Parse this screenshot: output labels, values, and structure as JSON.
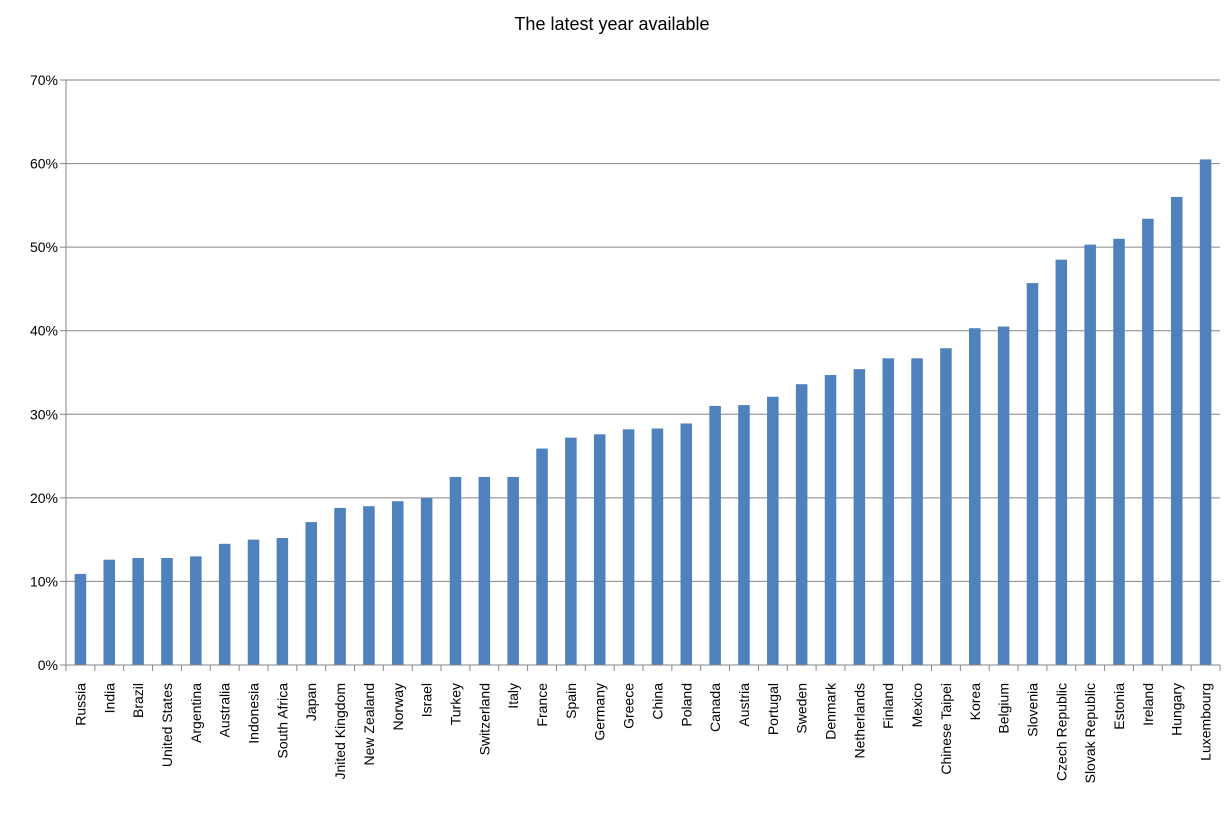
{
  "chart_data": {
    "type": "bar",
    "title": "The latest year available",
    "xlabel": "",
    "ylabel": "",
    "ylim": [
      0,
      0.7
    ],
    "yticks": [
      "0%",
      "10%",
      "20%",
      "30%",
      "40%",
      "50%",
      "60%",
      "70%"
    ],
    "grid": true,
    "legend": "none",
    "bar_color": "#4f81bd",
    "categories": [
      "Russia",
      "India",
      "Brazil",
      "United States",
      "Argentina",
      "Australia",
      "Indonesia",
      "South Africa",
      "Japan",
      "Jnited Kingdom",
      "New Zealand",
      "Norway",
      "Israel",
      "Turkey",
      "Switzerland",
      "Italy",
      "France",
      "Spain",
      "Germany",
      "Greece",
      "China",
      "Poland",
      "Canada",
      "Austria",
      "Portugal",
      "Sweden",
      "Denmark",
      "Netherlands",
      "Finland",
      "Mexico",
      "Chinese Taipei",
      "Korea",
      "Belgium",
      "Slovenia",
      "Czech Republic",
      "Slovak Republic",
      "Estonia",
      "Ireland",
      "Hungary",
      "Luxembourg"
    ],
    "values": [
      0.109,
      0.126,
      0.128,
      0.128,
      0.13,
      0.145,
      0.15,
      0.152,
      0.171,
      0.188,
      0.19,
      0.196,
      0.2,
      0.225,
      0.225,
      0.225,
      0.259,
      0.272,
      0.276,
      0.282,
      0.283,
      0.289,
      0.31,
      0.311,
      0.321,
      0.336,
      0.347,
      0.354,
      0.367,
      0.367,
      0.379,
      0.403,
      0.405,
      0.457,
      0.485,
      0.503,
      0.51,
      0.534,
      0.56,
      0.605
    ]
  }
}
